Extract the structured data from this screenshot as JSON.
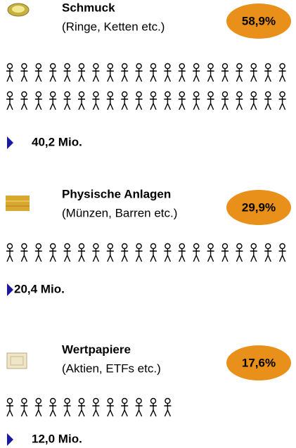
{
  "chart_data": {
    "type": "pictograph",
    "categories": [
      "Schmuck",
      "Physische Anlagen",
      "Wertpapiere"
    ],
    "subtitles": [
      "(Ringe, Ketten etc.)",
      "(Münzen, Barren etc.)",
      "(Aktien, ETFs  etc.)"
    ],
    "values": [
      40.2,
      20.4,
      12.0
    ],
    "value_labels": [
      "40,2 Mio.",
      "20,4 Mio.",
      "12,0 Mio."
    ],
    "shares": [
      58.9,
      29.9,
      17.6
    ],
    "share_labels": [
      "58,9%",
      "29,9%",
      "17,6%"
    ],
    "share_color": "#e8901a",
    "icon_color": "#000000",
    "pointer_color": "#1a1aa0"
  }
}
